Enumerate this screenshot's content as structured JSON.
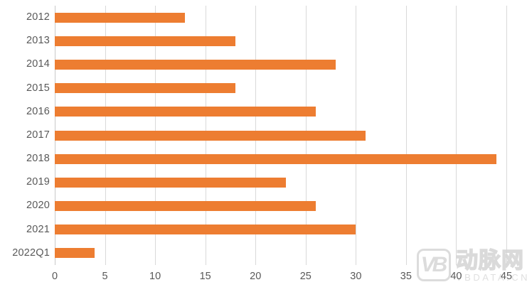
{
  "chart_data": {
    "type": "bar",
    "orientation": "horizontal",
    "title": "",
    "xlabel": "",
    "ylabel": "",
    "categories": [
      "2012",
      "2013",
      "2014",
      "2015",
      "2016",
      "2017",
      "2018",
      "2019",
      "2020",
      "2021",
      "2022Q1"
    ],
    "values": [
      13,
      18,
      28,
      18,
      26,
      31,
      44,
      23,
      26,
      30,
      4
    ],
    "xlim": [
      0,
      45
    ],
    "x_ticks": [
      0,
      5,
      10,
      15,
      20,
      25,
      30,
      35,
      40,
      45
    ],
    "grid": true,
    "legend": "none",
    "bar_color": "#ed7d31",
    "gridline_color": "#d9d9d9",
    "axis_text_color": "#595959"
  },
  "watermark": {
    "logo_text": "VB",
    "brand_text": "动脉网",
    "sub_text": "VBDATA.CN"
  }
}
